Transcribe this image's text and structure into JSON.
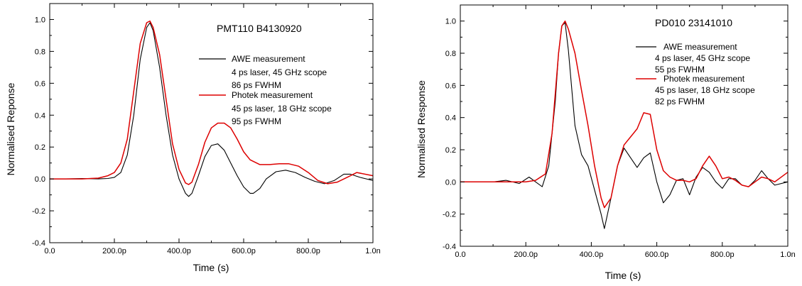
{
  "chart_data": [
    {
      "type": "line",
      "title": "PMT110 B4130920",
      "xlabel": "Time (s)",
      "ylabel": "Normalised Reponse",
      "xlim": [
        0,
        1e-09
      ],
      "ylim": [
        -0.4,
        1.1
      ],
      "xticks": [
        {
          "value": 0,
          "label": "0.0"
        },
        {
          "value": 2e-10,
          "label": "200.0p"
        },
        {
          "value": 4e-10,
          "label": "400.0p"
        },
        {
          "value": 6e-10,
          "label": "600.0p"
        },
        {
          "value": 8e-10,
          "label": "800.0p"
        },
        {
          "value": 1e-09,
          "label": "1.0n"
        }
      ],
      "yticks": [
        {
          "value": -0.4,
          "label": "-0.4"
        },
        {
          "value": -0.2,
          "label": "-0.2"
        },
        {
          "value": 0.0,
          "label": "0.0"
        },
        {
          "value": 0.2,
          "label": "0.2"
        },
        {
          "value": 0.4,
          "label": "0.4"
        },
        {
          "value": 0.6,
          "label": "0.6"
        },
        {
          "value": 0.8,
          "label": "0.8"
        },
        {
          "value": 1.0,
          "label": "1.0"
        }
      ],
      "grid": false,
      "legend_position": "upper-right",
      "series": [
        {
          "name": "AWE measurement",
          "legend_lines": [
            "AWE measurement",
            "4 ps laser, 45 GHz scope",
            "86 ps FWHM"
          ],
          "color": "#000000",
          "x": [
            0,
            5e-11,
            1e-10,
            1.5e-10,
            1.8e-10,
            2e-10,
            2.2e-10,
            2.4e-10,
            2.6e-10,
            2.8e-10,
            3e-10,
            3.1e-10,
            3.2e-10,
            3.4e-10,
            3.6e-10,
            3.8e-10,
            4e-10,
            4.2e-10,
            4.3e-10,
            4.4e-10,
            4.6e-10,
            4.8e-10,
            5e-10,
            5.2e-10,
            5.4e-10,
            5.6e-10,
            5.8e-10,
            6e-10,
            6.2e-10,
            6.3e-10,
            6.5e-10,
            6.7e-10,
            7e-10,
            7.3e-10,
            7.6e-10,
            7.9e-10,
            8.2e-10,
            8.5e-10,
            8.8e-10,
            9.1e-10,
            9.3e-10,
            9.6e-10,
            1e-09
          ],
          "y": [
            0.0,
            0.0,
            0.003,
            0.0,
            0.003,
            0.01,
            0.04,
            0.15,
            0.4,
            0.75,
            0.95,
            0.98,
            0.93,
            0.7,
            0.4,
            0.15,
            0.0,
            -0.09,
            -0.11,
            -0.09,
            0.02,
            0.14,
            0.21,
            0.22,
            0.18,
            0.1,
            0.02,
            -0.05,
            -0.09,
            -0.09,
            -0.06,
            0.0,
            0.045,
            0.055,
            0.04,
            0.01,
            -0.015,
            -0.03,
            -0.01,
            0.03,
            0.03,
            0.01,
            -0.01
          ]
        },
        {
          "name": "Photek measurement",
          "legend_lines": [
            "Photek measurement",
            "45 ps laser, 18 GHz scope",
            "95 ps FWHM"
          ],
          "color": "#dd0000",
          "x": [
            0,
            5e-11,
            1e-10,
            1.5e-10,
            1.8e-10,
            2e-10,
            2.2e-10,
            2.4e-10,
            2.6e-10,
            2.8e-10,
            3e-10,
            3.1e-10,
            3.2e-10,
            3.4e-10,
            3.6e-10,
            3.8e-10,
            4e-10,
            4.2e-10,
            4.3e-10,
            4.4e-10,
            4.6e-10,
            4.8e-10,
            5e-10,
            5.2e-10,
            5.4e-10,
            5.6e-10,
            5.8e-10,
            6e-10,
            6.2e-10,
            6.5e-10,
            6.8e-10,
            7.1e-10,
            7.4e-10,
            7.7e-10,
            8e-10,
            8.3e-10,
            8.6e-10,
            8.9e-10,
            9.2e-10,
            9.5e-10,
            1e-09
          ],
          "y": [
            0.0,
            0.0,
            0.0,
            0.005,
            0.02,
            0.04,
            0.1,
            0.25,
            0.55,
            0.85,
            0.98,
            0.99,
            0.95,
            0.78,
            0.5,
            0.22,
            0.06,
            -0.025,
            -0.035,
            -0.02,
            0.09,
            0.23,
            0.32,
            0.35,
            0.35,
            0.32,
            0.25,
            0.17,
            0.12,
            0.09,
            0.09,
            0.095,
            0.095,
            0.08,
            0.04,
            -0.01,
            -0.03,
            -0.02,
            0.01,
            0.04,
            0.02
          ]
        }
      ]
    },
    {
      "type": "line",
      "title": "PD010 23141010",
      "xlabel": "Time (s)",
      "ylabel": "Normalised Response",
      "xlim": [
        0,
        1e-09
      ],
      "ylim": [
        -0.4,
        1.1
      ],
      "xticks": [
        {
          "value": 0,
          "label": "0.0"
        },
        {
          "value": 2e-10,
          "label": "200.0p"
        },
        {
          "value": 4e-10,
          "label": "400.0p"
        },
        {
          "value": 6e-10,
          "label": "600.0p"
        },
        {
          "value": 8e-10,
          "label": "800.0p"
        },
        {
          "value": 1e-09,
          "label": "1.0n"
        }
      ],
      "yticks": [
        {
          "value": -0.4,
          "label": "-0.4"
        },
        {
          "value": -0.2,
          "label": "-0.2"
        },
        {
          "value": 0.0,
          "label": "0.0"
        },
        {
          "value": 0.2,
          "label": "0.2"
        },
        {
          "value": 0.4,
          "label": "0.4"
        },
        {
          "value": 0.6,
          "label": "0.6"
        },
        {
          "value": 0.8,
          "label": "0.8"
        },
        {
          "value": 1.0,
          "label": "1.0"
        }
      ],
      "grid": false,
      "legend_position": "upper-right",
      "series": [
        {
          "name": "AWE measurement",
          "legend_lines": [
            "AWE measurement",
            "4 ps laser, 45 GHz scope",
            "55 ps FWHM"
          ],
          "color": "#000000",
          "x": [
            0,
            5e-11,
            1e-10,
            1.4e-10,
            1.8e-10,
            2.1e-10,
            2.3e-10,
            2.5e-10,
            2.7e-10,
            2.9e-10,
            3e-10,
            3.1e-10,
            3.2e-10,
            3.3e-10,
            3.5e-10,
            3.7e-10,
            3.9e-10,
            4.1e-10,
            4.3e-10,
            4.4e-10,
            4.6e-10,
            4.8e-10,
            5e-10,
            5.2e-10,
            5.4e-10,
            5.6e-10,
            5.8e-10,
            6e-10,
            6.2e-10,
            6.4e-10,
            6.6e-10,
            6.8e-10,
            7e-10,
            7.2e-10,
            7.4e-10,
            7.6e-10,
            7.8e-10,
            8e-10,
            8.2e-10,
            8.4e-10,
            8.6e-10,
            8.8e-10,
            9e-10,
            9.2e-10,
            9.4e-10,
            9.6e-10,
            1e-09
          ],
          "y": [
            0.0,
            0.0,
            0.0,
            0.01,
            -0.01,
            0.03,
            0.0,
            -0.03,
            0.1,
            0.5,
            0.8,
            0.97,
            0.99,
            0.82,
            0.35,
            0.17,
            0.1,
            -0.05,
            -0.2,
            -0.29,
            -0.1,
            0.1,
            0.21,
            0.15,
            0.09,
            0.15,
            0.18,
            0.0,
            -0.13,
            -0.08,
            0.01,
            0.02,
            -0.08,
            0.03,
            0.09,
            0.06,
            0.0,
            -0.04,
            0.02,
            0.02,
            -0.02,
            -0.03,
            0.01,
            0.07,
            0.02,
            -0.02,
            0.0
          ]
        },
        {
          "name": "Photek measurement",
          "legend_lines": [
            "Photek measurement",
            "45 ps laser, 18 GHz scope",
            "82 ps FWHM"
          ],
          "color": "#dd0000",
          "x": [
            0,
            5e-11,
            1e-10,
            1.5e-10,
            2e-10,
            2.3e-10,
            2.6e-10,
            2.8e-10,
            3e-10,
            3.1e-10,
            3.2e-10,
            3.3e-10,
            3.5e-10,
            3.7e-10,
            3.9e-10,
            4.1e-10,
            4.3e-10,
            4.4e-10,
            4.6e-10,
            4.8e-10,
            5e-10,
            5.2e-10,
            5.4e-10,
            5.6e-10,
            5.8e-10,
            6e-10,
            6.2e-10,
            6.4e-10,
            6.6e-10,
            6.8e-10,
            7e-10,
            7.2e-10,
            7.4e-10,
            7.6e-10,
            7.8e-10,
            8e-10,
            8.2e-10,
            8.4e-10,
            8.6e-10,
            8.8e-10,
            9e-10,
            9.2e-10,
            9.4e-10,
            9.6e-10,
            1e-09
          ],
          "y": [
            0.0,
            0.0,
            0.0,
            0.0,
            0.0,
            0.01,
            0.05,
            0.3,
            0.8,
            0.97,
            1.0,
            0.95,
            0.8,
            0.57,
            0.35,
            0.1,
            -0.1,
            -0.16,
            -0.1,
            0.1,
            0.23,
            0.28,
            0.33,
            0.43,
            0.42,
            0.2,
            0.07,
            0.03,
            0.01,
            0.01,
            0.0,
            0.02,
            0.1,
            0.16,
            0.1,
            0.02,
            0.03,
            0.01,
            -0.02,
            -0.03,
            0.0,
            0.03,
            0.02,
            0.0,
            0.06
          ]
        }
      ]
    }
  ]
}
